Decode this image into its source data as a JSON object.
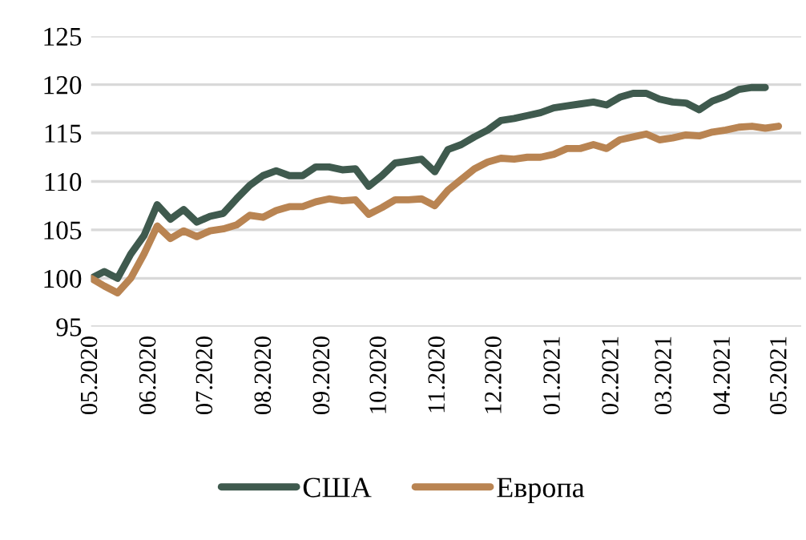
{
  "chart_data": {
    "type": "line",
    "x": [
      "2020-05-01",
      "2020-05-08",
      "2020-05-15",
      "2020-05-22",
      "2020-05-29",
      "2020-06-05",
      "2020-06-12",
      "2020-06-19",
      "2020-06-26",
      "2020-07-03",
      "2020-07-10",
      "2020-07-17",
      "2020-07-24",
      "2020-07-31",
      "2020-08-07",
      "2020-08-14",
      "2020-08-21",
      "2020-08-28",
      "2020-09-04",
      "2020-09-11",
      "2020-09-18",
      "2020-09-25",
      "2020-10-02",
      "2020-10-09",
      "2020-10-16",
      "2020-10-23",
      "2020-10-30",
      "2020-11-06",
      "2020-11-13",
      "2020-11-20",
      "2020-11-27",
      "2020-12-04",
      "2020-12-11",
      "2020-12-18",
      "2020-12-25",
      "2021-01-01",
      "2021-01-08",
      "2021-01-15",
      "2021-01-22",
      "2021-01-29",
      "2021-02-05",
      "2021-02-12",
      "2021-02-19",
      "2021-02-26",
      "2021-03-05",
      "2021-03-12",
      "2021-03-19",
      "2021-03-26",
      "2021-04-02",
      "2021-04-09",
      "2021-04-16",
      "2021-04-23",
      "2021-04-30"
    ],
    "series": [
      {
        "name": "США",
        "color": "#3f5a4e",
        "values": [
          100.0,
          100.7,
          100.0,
          102.5,
          104.4,
          107.6,
          106.1,
          107.1,
          105.8,
          106.4,
          106.7,
          108.2,
          109.6,
          110.6,
          111.1,
          110.6,
          110.6,
          111.5,
          111.5,
          111.2,
          111.3,
          109.5,
          110.6,
          111.9,
          112.1,
          112.3,
          111.0,
          113.3,
          113.8,
          114.6,
          115.3,
          116.3,
          116.5,
          116.8,
          117.1,
          117.6,
          117.8,
          118.0,
          118.2,
          117.9,
          118.7,
          119.1,
          119.1,
          118.5,
          118.2,
          118.1,
          117.4,
          118.3,
          118.8,
          119.5,
          119.7,
          119.7,
          null
        ]
      },
      {
        "name": "Европа",
        "color": "#b98452",
        "values": [
          100.0,
          99.2,
          98.5,
          100.0,
          102.5,
          105.4,
          104.1,
          104.9,
          104.3,
          104.9,
          105.1,
          105.5,
          106.5,
          106.3,
          107.0,
          107.4,
          107.4,
          107.9,
          108.2,
          108.0,
          108.1,
          106.6,
          107.3,
          108.1,
          108.1,
          108.2,
          107.5,
          109.1,
          110.2,
          111.3,
          112.0,
          112.4,
          112.3,
          112.5,
          112.5,
          112.8,
          113.4,
          113.4,
          113.8,
          113.4,
          114.3,
          114.6,
          114.9,
          114.3,
          114.5,
          114.8,
          114.7,
          115.1,
          115.3,
          115.6,
          115.7,
          115.5,
          115.7
        ]
      }
    ],
    "xlim": [
      "2020-05-01",
      "2021-05-12"
    ],
    "xticks": [
      {
        "value": "2020-05-01",
        "label": "05.2020"
      },
      {
        "value": "2020-06-01",
        "label": "06.2020"
      },
      {
        "value": "2020-07-01",
        "label": "07.2020"
      },
      {
        "value": "2020-08-01",
        "label": "08.2020"
      },
      {
        "value": "2020-09-01",
        "label": "09.2020"
      },
      {
        "value": "2020-10-01",
        "label": "10.2020"
      },
      {
        "value": "2020-11-01",
        "label": "11.2020"
      },
      {
        "value": "2020-12-01",
        "label": "12.2020"
      },
      {
        "value": "2021-01-01",
        "label": "01.2021"
      },
      {
        "value": "2021-02-01",
        "label": "02.2021"
      },
      {
        "value": "2021-03-01",
        "label": "03.2021"
      },
      {
        "value": "2021-04-01",
        "label": "04.2021"
      },
      {
        "value": "2021-05-01",
        "label": "05.2021"
      }
    ],
    "ylim": [
      95,
      125
    ],
    "yticks": [
      95,
      100,
      105,
      110,
      115,
      120,
      125
    ],
    "grid": "y",
    "legend": "bottom",
    "marker": "none",
    "line_style": "solid"
  }
}
